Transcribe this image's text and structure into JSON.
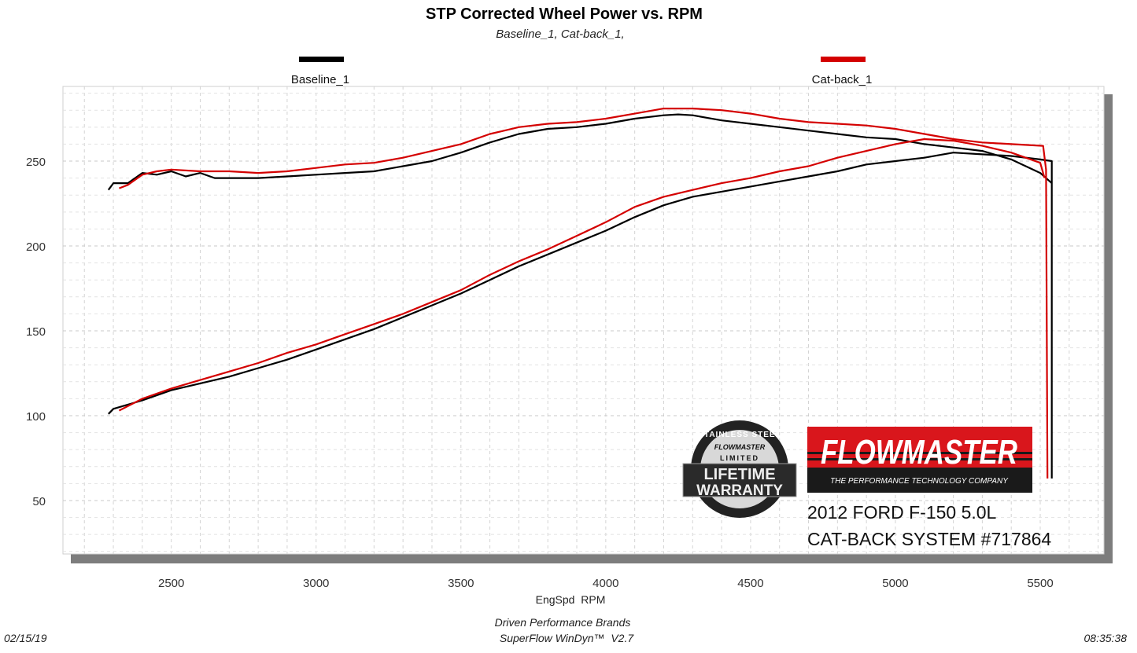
{
  "chart_data": {
    "type": "line",
    "title": "STP Corrected Wheel Power vs. RPM",
    "subtitle": "Baseline_1, Cat-back_1,",
    "xlabel": "EngSpd  RPM",
    "ylabel": "",
    "xlim": [
      2126,
      5720
    ],
    "ylim": [
      18.5,
      294
    ],
    "grid": true,
    "legend_placement": "top",
    "x_ticks": [
      "2500",
      "3000",
      "3500",
      "4000",
      "4500",
      "5000",
      "5500"
    ],
    "y_ticks": [
      "50",
      "100",
      "150",
      "200",
      "250"
    ],
    "series": [
      {
        "name": "Baseline_1",
        "color": "#000000",
        "curves": [
          {
            "x": [
              2283,
              2300,
              2350,
              2400,
              2450,
              2500,
              2550,
              2600,
              2650,
              2700,
              2800,
              2900,
              3000,
              3100,
              3200,
              3300,
              3400,
              3500,
              3600,
              3700,
              3800,
              3900,
              4000,
              4100,
              4200,
              4250,
              4300,
              4400,
              4500,
              4600,
              4700,
              4800,
              4900,
              5000,
              5100,
              5200,
              5300,
              5400,
              5500,
              5540
            ],
            "y": [
              233,
              237,
              237,
              243,
              242,
              244,
              241,
              243,
              240,
              240,
              240,
              241,
              242,
              243,
              244,
              247,
              250,
              255,
              261,
              266,
              269,
              270,
              272,
              275,
              277,
              277.5,
              277,
              274,
              272,
              270,
              268,
              266,
              264,
              263,
              260,
              258,
              256,
              251,
              243,
              237
            ]
          },
          {
            "x": [
              2283,
              2300,
              2400,
              2500,
              2600,
              2700,
              2800,
              2900,
              3000,
              3100,
              3200,
              3300,
              3400,
              3500,
              3600,
              3700,
              3800,
              3900,
              4000,
              4100,
              4200,
              4300,
              4400,
              4500,
              4600,
              4700,
              4800,
              4900,
              5000,
              5100,
              5200,
              5300,
              5400,
              5500,
              5540,
              5540
            ],
            "y": [
              101,
              104,
              109,
              115,
              119,
              123,
              128,
              133,
              139,
              145,
              151,
              158,
              165,
              172,
              180,
              188,
              195,
              202,
              209,
              217,
              224,
              229,
              232,
              235,
              238,
              241,
              244,
              248,
              250,
              252,
              255,
              254,
              253,
              251,
              250,
              63
            ]
          }
        ]
      },
      {
        "name": "Cat-back_1",
        "color": "#d40000",
        "curves": [
          {
            "x": [
              2320,
              2350,
              2400,
              2450,
              2500,
              2600,
              2700,
              2800,
              2900,
              3000,
              3100,
              3200,
              3300,
              3400,
              3500,
              3600,
              3700,
              3800,
              3900,
              4000,
              4100,
              4200,
              4300,
              4400,
              4500,
              4600,
              4700,
              4800,
              4900,
              5000,
              5100,
              5200,
              5300,
              5400,
              5510,
              5520,
              5525
            ],
            "y": [
              234,
              236,
              242,
              244,
              245,
              244,
              244,
              243,
              244,
              246,
              248,
              249,
              252,
              256,
              260,
              266,
              270,
              272,
              273,
              275,
              278,
              281,
              281,
              280,
              278,
              275,
              273,
              272,
              271,
              269,
              266,
              263,
              261,
              260,
              259,
              245,
              63
            ]
          },
          {
            "x": [
              2320,
              2400,
              2500,
              2600,
              2700,
              2800,
              2900,
              3000,
              3100,
              3200,
              3300,
              3400,
              3500,
              3600,
              3700,
              3800,
              3900,
              4000,
              4100,
              4200,
              4300,
              4400,
              4500,
              4600,
              4700,
              4800,
              4900,
              5000,
              5100,
              5200,
              5300,
              5400,
              5500,
              5515
            ],
            "y": [
              103,
              110,
              116,
              121,
              126,
              131,
              137,
              142,
              148,
              154,
              160,
              167,
              174,
              183,
              191,
              198,
              206,
              214,
              223,
              229,
              233,
              237,
              240,
              244,
              247,
              252,
              256,
              260,
              263,
              262,
              259,
              255,
              249,
              240
            ]
          }
        ]
      }
    ]
  },
  "logos": {
    "warranty": {
      "top": "STAINLESS STEEL",
      "brand": "FLOWMASTER",
      "mid": "LIMITED",
      "line1": "LIFETIME",
      "line2": "WARRANTY"
    },
    "flowmaster": {
      "name": "FLOWMASTER",
      "tagline": "THE PERFORMANCE TECHNOLOGY COMPANY",
      "red": "#d9161c"
    }
  },
  "annotation": {
    "line1": "2012 FORD F-150 5.0L",
    "line2": "CAT-BACK SYSTEM #717864"
  },
  "footer": {
    "date": "02/15/19",
    "company": "Driven Performance Brands",
    "software": "SuperFlow WinDyn™  V2.7",
    "time": "08:35:38"
  }
}
